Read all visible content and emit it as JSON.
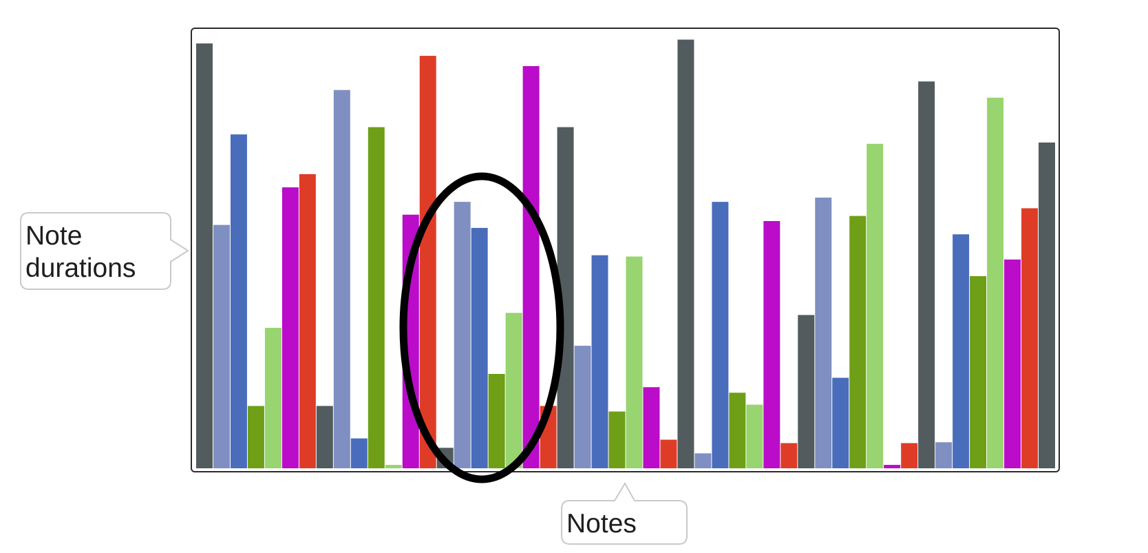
{
  "callouts": {
    "y_callout_line1": "Note",
    "y_callout_line2": "durations",
    "x_callout": "Notes"
  },
  "colors": {
    "dark-gray": "#525b5d",
    "lavender": "#808fc1",
    "blue": "#4a6dbb",
    "dark-green": "#6e9f17",
    "light-green": "#98d46f",
    "magenta": "#ba0cc9",
    "red": "#df3c27",
    "frame": "#2b2b2b",
    "ellipse": "#000000",
    "callout-border": "#c9c9c9"
  },
  "chart_data": {
    "type": "bar",
    "xlabel": "Notes",
    "ylabel": "Note durations",
    "ylim": [
      0,
      100
    ],
    "grid": false,
    "legend": "none",
    "bars": [
      {
        "value": 99.5,
        "color": "dark-gray"
      },
      {
        "value": 57.0,
        "color": "lavender"
      },
      {
        "value": 78.2,
        "color": "blue"
      },
      {
        "value": 14.6,
        "color": "dark-green"
      },
      {
        "value": 32.9,
        "color": "light-green"
      },
      {
        "value": 65.8,
        "color": "magenta"
      },
      {
        "value": 68.9,
        "color": "red"
      },
      {
        "value": 14.6,
        "color": "dark-gray"
      },
      {
        "value": 88.6,
        "color": "lavender"
      },
      {
        "value": 7.0,
        "color": "blue"
      },
      {
        "value": 79.9,
        "color": "dark-green"
      },
      {
        "value": 0.8,
        "color": "light-green"
      },
      {
        "value": 59.4,
        "color": "magenta"
      },
      {
        "value": 96.6,
        "color": "red"
      },
      {
        "value": 4.8,
        "color": "dark-gray"
      },
      {
        "value": 62.4,
        "color": "lavender"
      },
      {
        "value": 56.3,
        "color": "blue"
      },
      {
        "value": 22.1,
        "color": "dark-green"
      },
      {
        "value": 36.4,
        "color": "light-green"
      },
      {
        "value": 94.2,
        "color": "magenta"
      },
      {
        "value": 14.6,
        "color": "red"
      },
      {
        "value": 79.9,
        "color": "dark-gray"
      },
      {
        "value": 28.7,
        "color": "lavender"
      },
      {
        "value": 49.9,
        "color": "blue"
      },
      {
        "value": 13.3,
        "color": "dark-green"
      },
      {
        "value": 49.6,
        "color": "light-green"
      },
      {
        "value": 19.0,
        "color": "magenta"
      },
      {
        "value": 6.7,
        "color": "red"
      },
      {
        "value": 100.4,
        "color": "dark-gray"
      },
      {
        "value": 3.5,
        "color": "lavender"
      },
      {
        "value": 62.4,
        "color": "blue"
      },
      {
        "value": 17.7,
        "color": "dark-green"
      },
      {
        "value": 14.9,
        "color": "light-green"
      },
      {
        "value": 57.9,
        "color": "magenta"
      },
      {
        "value": 5.9,
        "color": "red"
      },
      {
        "value": 35.9,
        "color": "dark-gray"
      },
      {
        "value": 63.4,
        "color": "lavender"
      },
      {
        "value": 21.2,
        "color": "blue"
      },
      {
        "value": 59.1,
        "color": "dark-green"
      },
      {
        "value": 76.0,
        "color": "light-green"
      },
      {
        "value": 0.8,
        "color": "magenta"
      },
      {
        "value": 5.9,
        "color": "red"
      },
      {
        "value": 90.6,
        "color": "dark-gray"
      },
      {
        "value": 6.1,
        "color": "lavender"
      },
      {
        "value": 54.8,
        "color": "blue"
      },
      {
        "value": 45.0,
        "color": "dark-green"
      },
      {
        "value": 86.8,
        "color": "light-green"
      },
      {
        "value": 48.9,
        "color": "magenta"
      },
      {
        "value": 60.9,
        "color": "red"
      },
      {
        "value": 76.3,
        "color": "dark-gray"
      }
    ],
    "annotations": [
      "ellipse highlighting a group of bars"
    ]
  }
}
